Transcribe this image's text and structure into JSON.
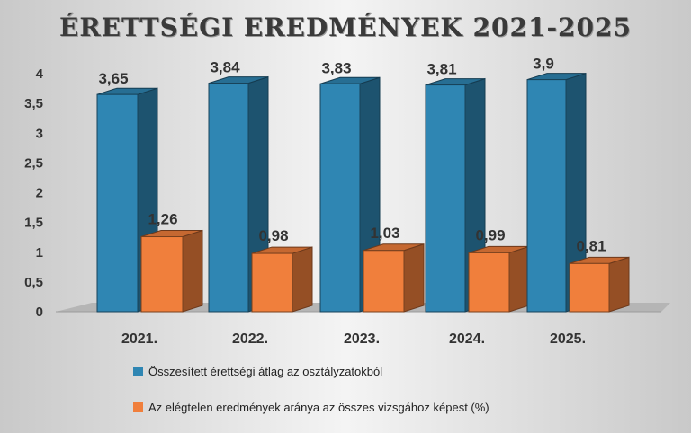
{
  "chart_data": {
    "type": "bar",
    "title": "ÉRETTSÉGI EREDMÉNYEK 2021-2025",
    "categories": [
      "2021.",
      "2022.",
      "2023.",
      "2024.",
      "2025."
    ],
    "series": [
      {
        "name": "Összesített érettségi átlag az osztályzatokból",
        "values": [
          3.65,
          3.84,
          3.83,
          3.81,
          3.9
        ],
        "labels": [
          "3,65",
          "3,84",
          "3,83",
          "3,81",
          "3,9"
        ],
        "color": "#2f86b3"
      },
      {
        "name": "Az elégtelen eredmények aránya az összes vizsgához képest (%)",
        "values": [
          1.26,
          0.98,
          1.03,
          0.99,
          0.81
        ],
        "labels": [
          "1,26",
          "0,98",
          "1,03",
          "0,99",
          "0,81"
        ],
        "color": "#f07f3c"
      }
    ],
    "yticks": [
      "0",
      "0,5",
      "1",
      "1,5",
      "2",
      "2,5",
      "3",
      "3,5",
      "4"
    ],
    "ylim": [
      0,
      4
    ],
    "legend": "bottom",
    "grid": false
  }
}
